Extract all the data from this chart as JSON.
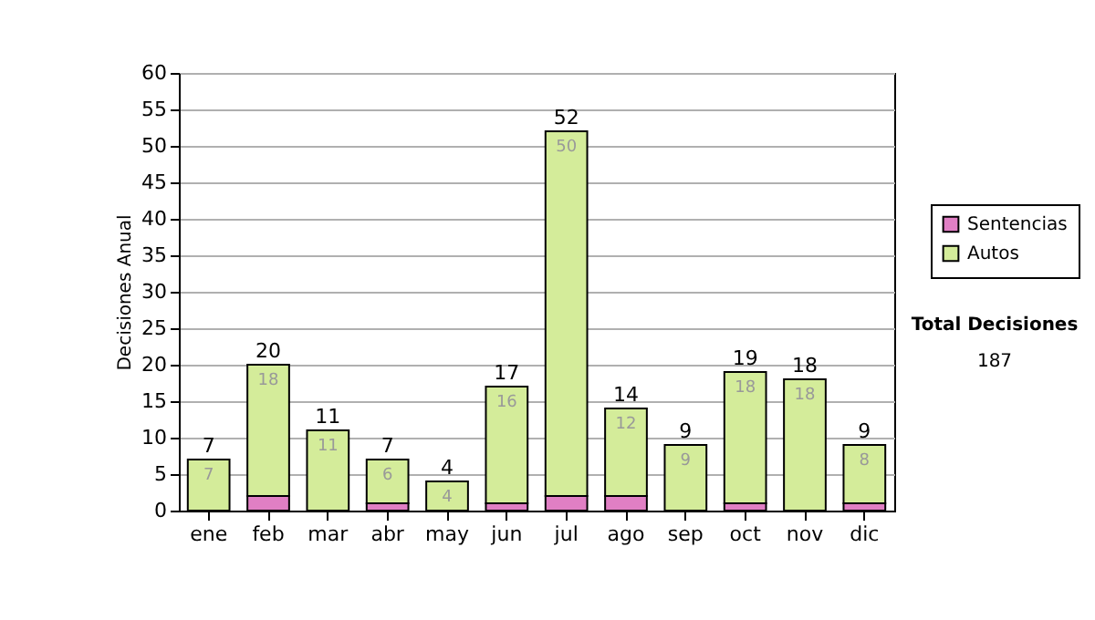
{
  "chart_data": {
    "type": "bar",
    "stacked": true,
    "ylabel": "Decisiones Anual",
    "categories": [
      "ene",
      "feb",
      "mar",
      "abr",
      "may",
      "jun",
      "jul",
      "ago",
      "sep",
      "oct",
      "nov",
      "dic"
    ],
    "series": [
      {
        "name": "Sentencias",
        "color": "#e07fc4",
        "values": [
          0,
          2,
          0,
          1,
          0,
          1,
          2,
          2,
          0,
          1,
          0,
          1
        ]
      },
      {
        "name": "Autos",
        "color": "#d4ec9a",
        "values": [
          7,
          18,
          11,
          6,
          4,
          16,
          50,
          12,
          9,
          18,
          18,
          8
        ],
        "value_labels": [
          "7",
          "18",
          "11",
          "6",
          "4",
          "16",
          "50",
          "12",
          "9",
          "18",
          "18",
          "8"
        ]
      }
    ],
    "totals": [
      "7",
      "20",
      "11",
      "7",
      "4",
      "17",
      "52",
      "14",
      "9",
      "19",
      "18",
      "9"
    ],
    "ylim": [
      0,
      60
    ],
    "yticks": [
      0,
      5,
      10,
      15,
      20,
      25,
      30,
      35,
      40,
      45,
      50,
      55,
      60
    ],
    "grid": "y",
    "legend": "right",
    "annotations": [
      "Total Decisiones",
      "187"
    ]
  }
}
